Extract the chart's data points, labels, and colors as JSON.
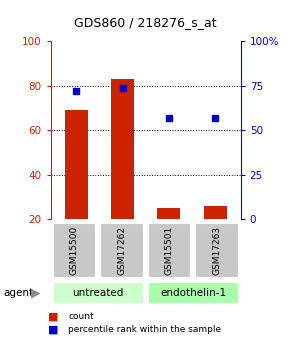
{
  "title": "GDS860 / 218276_s_at",
  "samples": [
    "GSM15500",
    "GSM17262",
    "GSM15501",
    "GSM17263"
  ],
  "group_labels": [
    "untreated",
    "endothelin-1"
  ],
  "count_values": [
    69,
    83,
    25,
    26
  ],
  "percentile_values": [
    72,
    74,
    57,
    57
  ],
  "left_ylim": [
    20,
    100
  ],
  "right_ylim": [
    0,
    100
  ],
  "left_yticks": [
    20,
    40,
    60,
    80,
    100
  ],
  "right_yticks": [
    0,
    25,
    50,
    75,
    100
  ],
  "right_yticklabels": [
    "0",
    "25",
    "50",
    "75",
    "100%"
  ],
  "grid_lines": [
    40,
    60,
    80
  ],
  "bar_color": "#CC2200",
  "dot_color": "#0000CC",
  "left_tick_color": "#CC2200",
  "right_tick_color": "#0000CC",
  "group_colors": [
    "#CCFFCC",
    "#AAFFAA"
  ],
  "sample_box_color": "#C8C8C8",
  "agent_label": "agent",
  "bar_width": 0.5,
  "title_fontsize": 9,
  "tick_labelsize": 7.5,
  "sample_fontsize": 6.5,
  "group_fontsize": 7.5,
  "legend_fontsize": 6.5
}
